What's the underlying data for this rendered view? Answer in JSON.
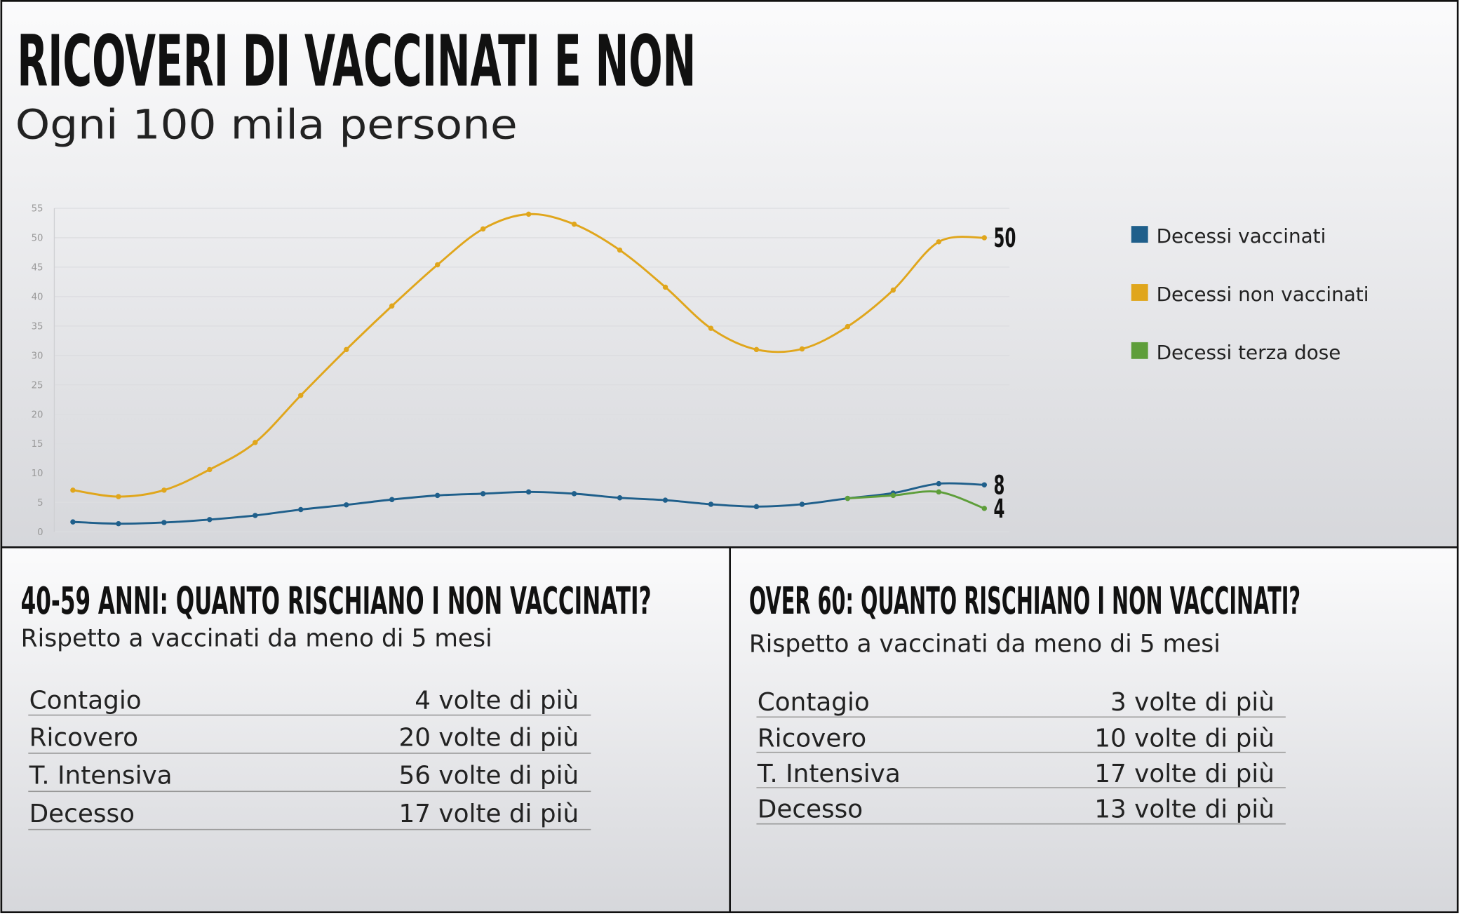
{
  "chart_data": {
    "type": "line",
    "title": "RICOVERI DI VACCINATI E NON",
    "subtitle": "Ogni 100 mila persone",
    "categories": [
      null,
      null,
      null,
      null,
      null,
      null,
      null,
      null,
      null,
      null,
      null,
      null,
      null,
      null,
      null,
      null,
      null,
      null,
      null,
      null,
      null
    ],
    "series": [
      {
        "name": "Decessi vaccinati",
        "color": "#1f5f8b",
        "values": [
          1.7,
          1.4,
          1.6,
          2.1,
          2.8,
          3.8,
          4.6,
          5.5,
          6.2,
          6.5,
          6.8,
          6.5,
          5.8,
          5.4,
          4.7,
          4.3,
          4.7,
          5.7,
          6.6,
          8.2,
          8
        ]
      },
      {
        "name": "Decessi non vaccinati",
        "color": "#e0a61c",
        "values": [
          7.1,
          6,
          7.1,
          10.6,
          15.2,
          23.2,
          31,
          38.4,
          45.4,
          51.5,
          54,
          52.3,
          47.9,
          41.6,
          34.6,
          31,
          31.1,
          34.9,
          41.1,
          49.3,
          50
        ]
      },
      {
        "name": "Decessi terza dose",
        "color": "#5e9e3a",
        "values": [
          null,
          null,
          null,
          null,
          null,
          null,
          null,
          null,
          null,
          null,
          null,
          null,
          null,
          null,
          null,
          null,
          null,
          5.7,
          6.2,
          6.8,
          4
        ]
      }
    ],
    "ylim": [
      0,
      55
    ],
    "yticks": [
      0,
      5,
      10,
      15,
      20,
      25,
      30,
      35,
      40,
      45,
      50,
      55
    ],
    "grid": true,
    "legend": "right"
  },
  "panels": [
    {
      "title": "40-59 ANNI:  QUANTO RISCHIANO I NON VACCINATI?",
      "subtitle": "Rispetto a vaccinati da meno di 5 mesi",
      "rows": [
        [
          "Contagio",
          "4 volte di più"
        ],
        [
          "Ricovero",
          "20 volte di più"
        ],
        [
          "T. Intensiva",
          "56 volte di più"
        ],
        [
          "Decesso",
          "17 volte di più"
        ]
      ]
    },
    {
      "title": "OVER 60: QUANTO RISCHIANO I NON VACCINATI?",
      "subtitle": "Rispetto a vaccinati da meno di 5 mesi",
      "rows": [
        [
          "Contagio",
          "3 volte di più"
        ],
        [
          "Ricovero",
          "10 volte di più"
        ],
        [
          "T. Intensiva",
          "17 volte di più"
        ],
        [
          "Decesso",
          "13 volte di più"
        ]
      ]
    }
  ]
}
